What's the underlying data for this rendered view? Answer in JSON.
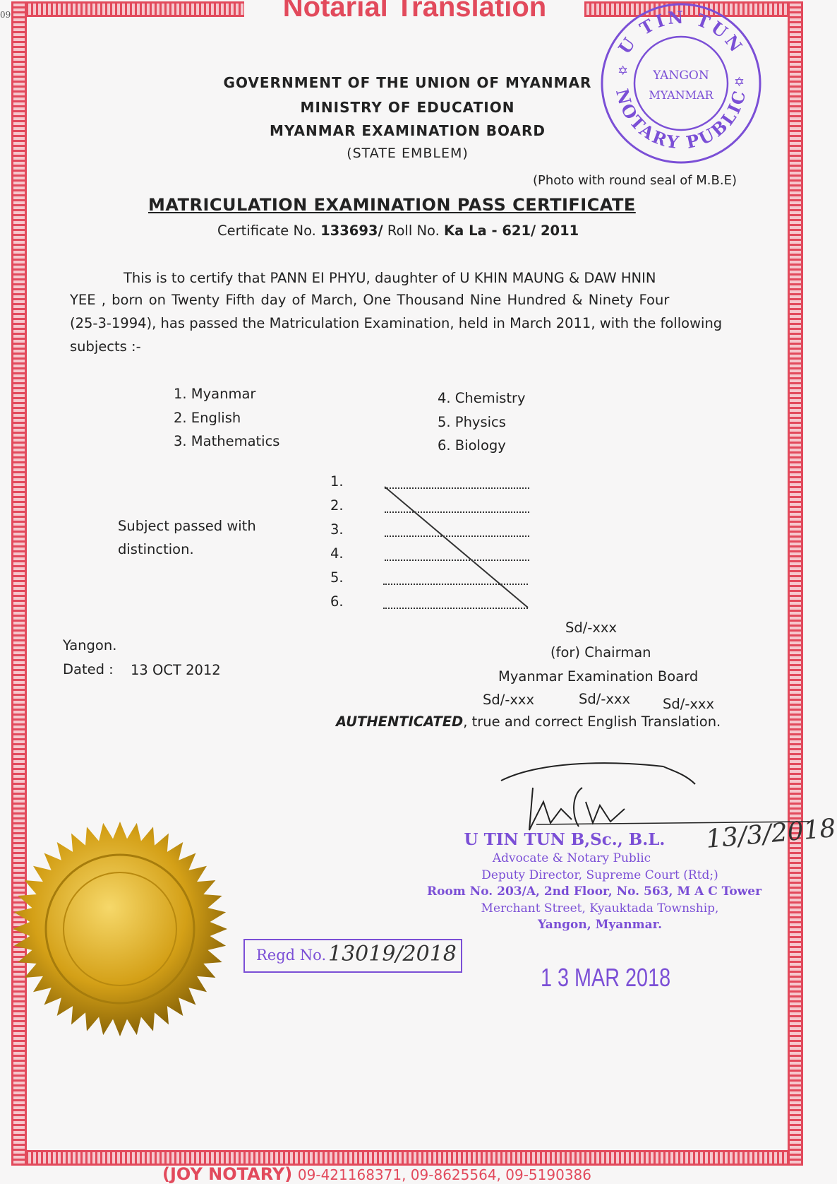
{
  "page_title": "Notarial Translation",
  "margin_mark": "09",
  "header": {
    "line1": "GOVERNMENT  OF  THE  UNION  OF  MYANMAR",
    "line2": "MINISTRY  OF  EDUCATION",
    "line3": "MYANMAR  EXAMINATION  BOARD",
    "line4": "(STATE  EMBLEM)",
    "photo_note": "(Photo with round seal of M.B.E)"
  },
  "certificate": {
    "title": "MATRICULATION  EXAMINATION  PASS CERTIFICATE",
    "cert_no_label": "Certificate No.",
    "cert_no": "133693/",
    "roll_no_label": "Roll No.",
    "roll_no": "Ka La  - 621/ 2011"
  },
  "paragraph": {
    "line1": "This  is to certify that  PANN  EI  PHYU,  daughter  of   U KHIN MAUNG  &  DAW HNIN",
    "line2": "YEE ,  born on   Twenty Fifth   day of   March,   One Thousand Nine Hundred   &   Ninety Four",
    "line3": "(25-3-1994), has passed the Matriculation Examination, held in March 2011, with the following",
    "line4": "subjects :-"
  },
  "subjects": [
    "1. Myanmar",
    "2. English",
    "3. Mathematics",
    "4. Chemistry",
    "5. Physics",
    "6. Biology"
  ],
  "distinction": {
    "label1": "Subject  passed with",
    "label2": "distinction.",
    "numbers": [
      "1.",
      "2.",
      "3.",
      "4.",
      "5.",
      "6."
    ]
  },
  "place_date": {
    "place": "Yangon.",
    "dated_label": "Dated :",
    "dated": "13 OCT 2012"
  },
  "signatures": {
    "sd1": "Sd/-xxx",
    "for_chairman": "(for) Chairman",
    "board": "Myanmar Examination Board",
    "sd_row": [
      "Sd/-xxx",
      "Sd/-xxx",
      "Sd/-xxx"
    ]
  },
  "authentication": {
    "bold": "AUTHENTICATED",
    "rest": ", true and correct English Translation."
  },
  "notary": {
    "name": "U TIN TUN B,Sc., B.L.",
    "title": "Advocate  &  Notary  Public",
    "position": "Deputy Director, Supreme Court (Rtd;)",
    "address1": "Room No. 203/A, 2nd Floor, No. 563, M A C Tower",
    "address2": "Merchant Street, Kyauktada Township,",
    "address3": "Yangon, Myanmar.",
    "handwritten_date": "13/3/2018",
    "date_stamp": "1 3 MAR 2018",
    "regd_label": "Regd No.",
    "regd_value": "13019/2018"
  },
  "round_stamp": {
    "top": "U TIN TUN",
    "center1": "YANGON",
    "center2": "MYANMAR",
    "bottom": "NOTARY PUBLIC"
  },
  "footer": {
    "name": "(JOY NOTARY)",
    "phones": "09-421168371, 09-8625564, 09-5190386"
  },
  "colors": {
    "border": "#e24a5c",
    "stamp": "#7b4fd6",
    "seal": "#d4a017"
  }
}
